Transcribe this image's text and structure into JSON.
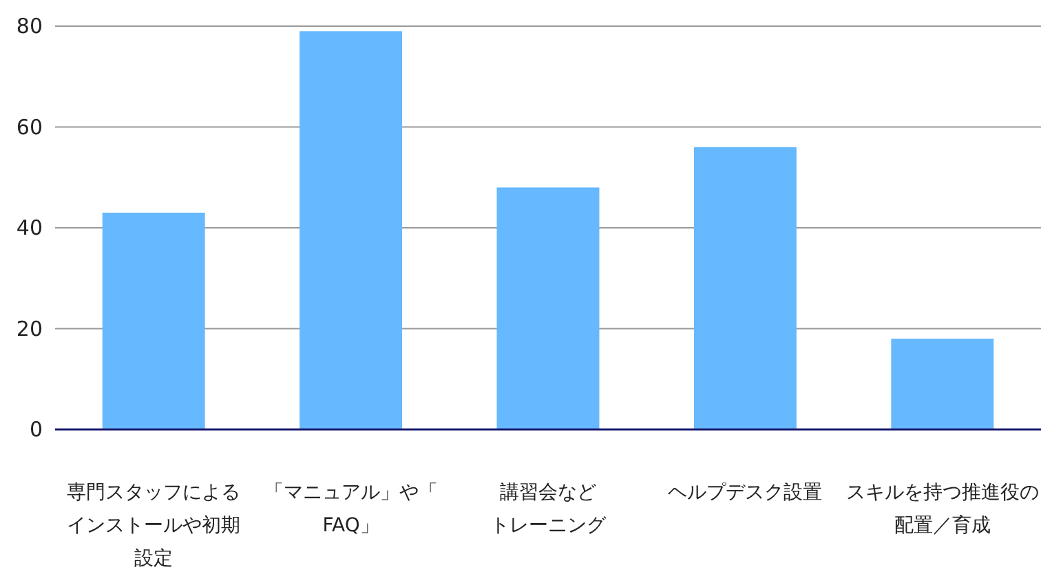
{
  "chart_data": {
    "type": "bar",
    "categories": [
      "専門スタッフによるインストールや初期設定",
      "「マニュアル」や「FAQ」",
      "講習会などトレーニング",
      "ヘルプデスク設置",
      "スキルを持つ推進役の配置／育成"
    ],
    "values": [
      43,
      79,
      48,
      56,
      18
    ],
    "color": "#66b8ff",
    "ylim": [
      0,
      80
    ],
    "yticks": [
      0,
      20,
      40,
      60,
      80
    ],
    "grid": "y"
  }
}
